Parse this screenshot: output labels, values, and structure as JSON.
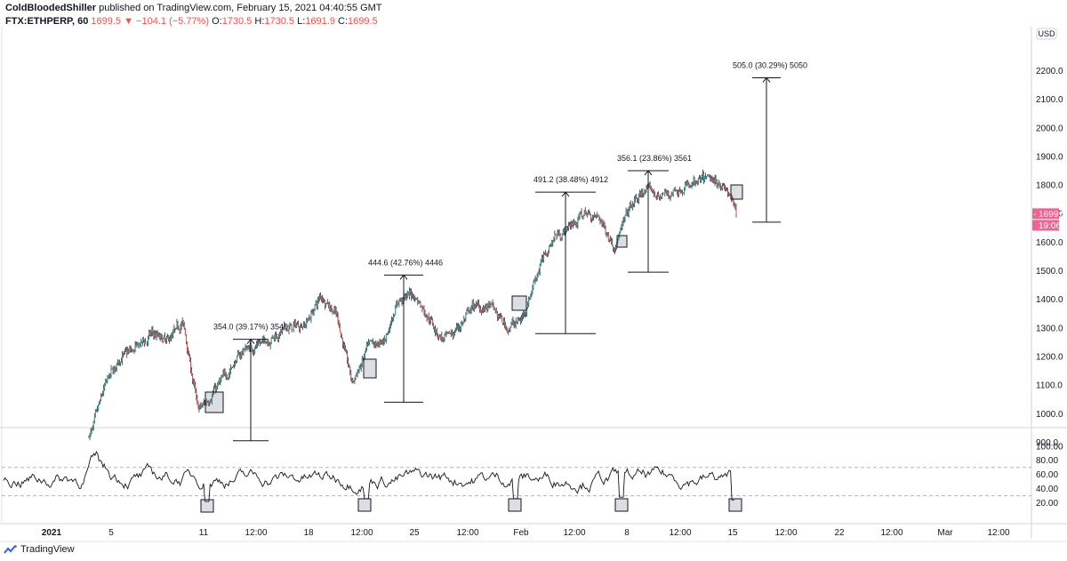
{
  "header": {
    "author": "ColdBloodedShiller",
    "published": "published on TradingView.com, February 15, 2021 04:40:55 GMT"
  },
  "quote": {
    "symbol": "FTX:ETHPERP, 60",
    "last": "1699.5",
    "change": "▼ −104.1 (−5.77%)",
    "o_label": "O:",
    "o_value": "1730.5",
    "h_label": "H:",
    "h_value": "1730.5",
    "l_label": "L:",
    "l_value": "1691.9",
    "c_label": "C:",
    "c_value": "1699.5"
  },
  "price_axis": {
    "currency": "USD",
    "ticks": [
      "2200.0",
      "2100.0",
      "2000.0",
      "1900.0",
      "1800.0",
      "1700.0",
      "1600.0",
      "1500.0",
      "1400.0",
      "1300.0",
      "1200.0",
      "1100.0",
      "1000.0",
      "900.0"
    ],
    "last_price_label": "1699.5",
    "countdown_label": "19:06"
  },
  "rsi_axis": {
    "ticks": [
      "100.00",
      "80.00",
      "60.00",
      "40.00",
      "20.00"
    ]
  },
  "time_axis": {
    "labels": [
      "2021",
      "5",
      "11",
      "12:00",
      "18",
      "12:00",
      "25",
      "12:00",
      "Feb",
      "12:00",
      "8",
      "12:00",
      "15",
      "12:00",
      "22",
      "12:00",
      "Mar",
      "12:00"
    ]
  },
  "colors": {
    "up": "#26a69a",
    "down": "#ef5350",
    "last_price_badge": "#f06292",
    "line": "#131722",
    "grid_dash": "#b2b5be"
  },
  "footer": {
    "brand": "TradingView"
  },
  "chart_data": {
    "type": "line",
    "title": "",
    "ylabel": "USD",
    "ylim": [
      900,
      2200
    ],
    "price_series_approx": [
      {
        "date": "2021-01-04",
        "value": 920
      },
      {
        "date": "2021-01-05",
        "value": 1110
      },
      {
        "date": "2021-01-06",
        "value": 1200
      },
      {
        "date": "2021-01-07",
        "value": 1230
      },
      {
        "date": "2021-01-08",
        "value": 1280
      },
      {
        "date": "2021-01-09",
        "value": 1250
      },
      {
        "date": "2021-01-10",
        "value": 1330
      },
      {
        "date": "2021-01-11",
        "value": 1000
      },
      {
        "date": "2021-01-12",
        "value": 1080
      },
      {
        "date": "2021-01-13",
        "value": 1150
      },
      {
        "date": "2021-01-14",
        "value": 1230
      },
      {
        "date": "2021-01-15",
        "value": 1240
      },
      {
        "date": "2021-01-16",
        "value": 1280
      },
      {
        "date": "2021-01-17",
        "value": 1300
      },
      {
        "date": "2021-01-18",
        "value": 1320
      },
      {
        "date": "2021-01-19",
        "value": 1420
      },
      {
        "date": "2021-01-20",
        "value": 1340
      },
      {
        "date": "2021-01-21",
        "value": 1100
      },
      {
        "date": "2021-01-22",
        "value": 1230
      },
      {
        "date": "2021-01-23",
        "value": 1250
      },
      {
        "date": "2021-01-24",
        "value": 1400
      },
      {
        "date": "2021-01-25",
        "value": 1420
      },
      {
        "date": "2021-01-26",
        "value": 1330
      },
      {
        "date": "2021-01-27",
        "value": 1250
      },
      {
        "date": "2021-01-28",
        "value": 1310
      },
      {
        "date": "2021-01-29",
        "value": 1380
      },
      {
        "date": "2021-01-30",
        "value": 1370
      },
      {
        "date": "2021-01-31",
        "value": 1300
      },
      {
        "date": "2021-02-01",
        "value": 1330
      },
      {
        "date": "2021-02-02",
        "value": 1500
      },
      {
        "date": "2021-02-03",
        "value": 1620
      },
      {
        "date": "2021-02-04",
        "value": 1650
      },
      {
        "date": "2021-02-05",
        "value": 1700
      },
      {
        "date": "2021-02-06",
        "value": 1690
      },
      {
        "date": "2021-02-07",
        "value": 1580
      },
      {
        "date": "2021-02-08",
        "value": 1720
      },
      {
        "date": "2021-02-09",
        "value": 1780
      },
      {
        "date": "2021-02-10",
        "value": 1760
      },
      {
        "date": "2021-02-11",
        "value": 1780
      },
      {
        "date": "2021-02-12",
        "value": 1800
      },
      {
        "date": "2021-02-13",
        "value": 1820
      },
      {
        "date": "2021-02-14",
        "value": 1810
      },
      {
        "date": "2021-02-15",
        "value": 1699.5
      }
    ],
    "measurements": [
      {
        "label": "354.0 (39.17%) 3540"
      },
      {
        "label": "444.6 (42.76%) 4446"
      },
      {
        "label": "491.2 (38.48%) 4912"
      },
      {
        "label": "356.1 (23.86%) 3561"
      },
      {
        "label": "505.0 (30.29%) 5050"
      }
    ],
    "rsi": {
      "ylim": [
        10,
        100
      ],
      "overbought": 70,
      "oversold": 30
    }
  }
}
